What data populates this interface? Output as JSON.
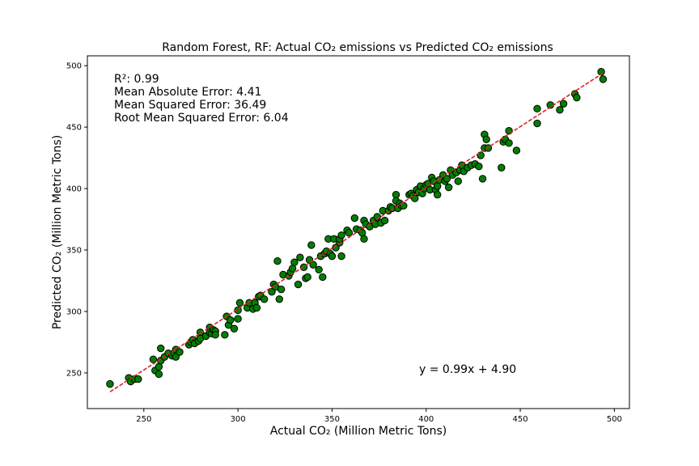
{
  "chart_data": {
    "type": "scatter",
    "title": "Random Forest, RF: Actual CO₂ emissions vs Predicted CO₂ emissions",
    "xlabel": "Actual CO₂ (Million Metric Tons)",
    "ylabel": "Predicted CO₂ (Million Metric Tons)",
    "xlim": [
      220,
      508
    ],
    "ylim": [
      221,
      508
    ],
    "xticks": [
      250,
      300,
      350,
      400,
      450,
      500
    ],
    "yticks": [
      250,
      300,
      350,
      400,
      450,
      500
    ],
    "grid": false,
    "colors": {
      "marker_fill": "#008000",
      "marker_edge": "#000000",
      "fit_line": "#d62728"
    },
    "stats": [
      "R²: 0.99",
      "Mean Absolute Error: 4.41",
      "Mean Squared Error: 36.49",
      "Root Mean Squared Error: 6.04"
    ],
    "equation": "y = 0.99x + 4.90",
    "fit": {
      "slope": 0.99,
      "intercept": 4.9,
      "x_range": [
        232,
        494
      ]
    },
    "points": [
      [
        232,
        241
      ],
      [
        242,
        246
      ],
      [
        243,
        243
      ],
      [
        245,
        245
      ],
      [
        247,
        245
      ],
      [
        255,
        261
      ],
      [
        256,
        252
      ],
      [
        258,
        249
      ],
      [
        258,
        255
      ],
      [
        259,
        260
      ],
      [
        259,
        270
      ],
      [
        261,
        263
      ],
      [
        263,
        266
      ],
      [
        265,
        264
      ],
      [
        266,
        266
      ],
      [
        267,
        263
      ],
      [
        267,
        269
      ],
      [
        269,
        267
      ],
      [
        274,
        273
      ],
      [
        275,
        275
      ],
      [
        276,
        277
      ],
      [
        277,
        274
      ],
      [
        279,
        276
      ],
      [
        280,
        283
      ],
      [
        280,
        278
      ],
      [
        283,
        280
      ],
      [
        285,
        287
      ],
      [
        285,
        283
      ],
      [
        286,
        282
      ],
      [
        287,
        285
      ],
      [
        288,
        284
      ],
      [
        288,
        281
      ],
      [
        293,
        281
      ],
      [
        294,
        296
      ],
      [
        295,
        289
      ],
      [
        296,
        293
      ],
      [
        298,
        286
      ],
      [
        300,
        294
      ],
      [
        300,
        301
      ],
      [
        301,
        307
      ],
      [
        305,
        303
      ],
      [
        306,
        307
      ],
      [
        308,
        302
      ],
      [
        309,
        307
      ],
      [
        310,
        303
      ],
      [
        311,
        312
      ],
      [
        312,
        313
      ],
      [
        314,
        310
      ],
      [
        318,
        316
      ],
      [
        319,
        322
      ],
      [
        320,
        320
      ],
      [
        321,
        341
      ],
      [
        322,
        310
      ],
      [
        323,
        318
      ],
      [
        324,
        330
      ],
      [
        327,
        329
      ],
      [
        328,
        332
      ],
      [
        329,
        335
      ],
      [
        330,
        340
      ],
      [
        332,
        322
      ],
      [
        333,
        344
      ],
      [
        335,
        336
      ],
      [
        336,
        327
      ],
      [
        337,
        328
      ],
      [
        338,
        342
      ],
      [
        339,
        354
      ],
      [
        340,
        338
      ],
      [
        343,
        334
      ],
      [
        344,
        345
      ],
      [
        345,
        328
      ],
      [
        346,
        347
      ],
      [
        347,
        349
      ],
      [
        348,
        359
      ],
      [
        349,
        347
      ],
      [
        350,
        345
      ],
      [
        351,
        359
      ],
      [
        352,
        352
      ],
      [
        354,
        356
      ],
      [
        354,
        359
      ],
      [
        355,
        362
      ],
      [
        355,
        345
      ],
      [
        358,
        366
      ],
      [
        359,
        364
      ],
      [
        362,
        376
      ],
      [
        363,
        367
      ],
      [
        365,
        366
      ],
      [
        366,
        364
      ],
      [
        367,
        374
      ],
      [
        367,
        359
      ],
      [
        368,
        371
      ],
      [
        370,
        369
      ],
      [
        372,
        374
      ],
      [
        373,
        371
      ],
      [
        374,
        377
      ],
      [
        376,
        372
      ],
      [
        377,
        382
      ],
      [
        378,
        374
      ],
      [
        380,
        382
      ],
      [
        381,
        385
      ],
      [
        382,
        384
      ],
      [
        384,
        395
      ],
      [
        384,
        390
      ],
      [
        385,
        384
      ],
      [
        386,
        388
      ],
      [
        387,
        386
      ],
      [
        388,
        386
      ],
      [
        391,
        395
      ],
      [
        392,
        396
      ],
      [
        393,
        394
      ],
      [
        394,
        392
      ],
      [
        395,
        399
      ],
      [
        396,
        397
      ],
      [
        397,
        402
      ],
      [
        398,
        396
      ],
      [
        399,
        400
      ],
      [
        400,
        403
      ],
      [
        401,
        404
      ],
      [
        402,
        399
      ],
      [
        403,
        409
      ],
      [
        404,
        406
      ],
      [
        405,
        399
      ],
      [
        406,
        402
      ],
      [
        406,
        395
      ],
      [
        407,
        407
      ],
      [
        409,
        411
      ],
      [
        410,
        406
      ],
      [
        411,
        408
      ],
      [
        412,
        401
      ],
      [
        413,
        415
      ],
      [
        414,
        411
      ],
      [
        416,
        413
      ],
      [
        417,
        406
      ],
      [
        418,
        415
      ],
      [
        419,
        419
      ],
      [
        420,
        414
      ],
      [
        422,
        417
      ],
      [
        424,
        419
      ],
      [
        426,
        420
      ],
      [
        428,
        418
      ],
      [
        429,
        427
      ],
      [
        430,
        408
      ],
      [
        431,
        433
      ],
      [
        431,
        444
      ],
      [
        432,
        440
      ],
      [
        433,
        433
      ],
      [
        440,
        417
      ],
      [
        441,
        438
      ],
      [
        442,
        440
      ],
      [
        444,
        447
      ],
      [
        444,
        437
      ],
      [
        448,
        431
      ],
      [
        459,
        465
      ],
      [
        459,
        453
      ],
      [
        466,
        468
      ],
      [
        471,
        464
      ],
      [
        473,
        469
      ],
      [
        479,
        477
      ],
      [
        480,
        474
      ],
      [
        493,
        495
      ],
      [
        494,
        489
      ]
    ]
  }
}
